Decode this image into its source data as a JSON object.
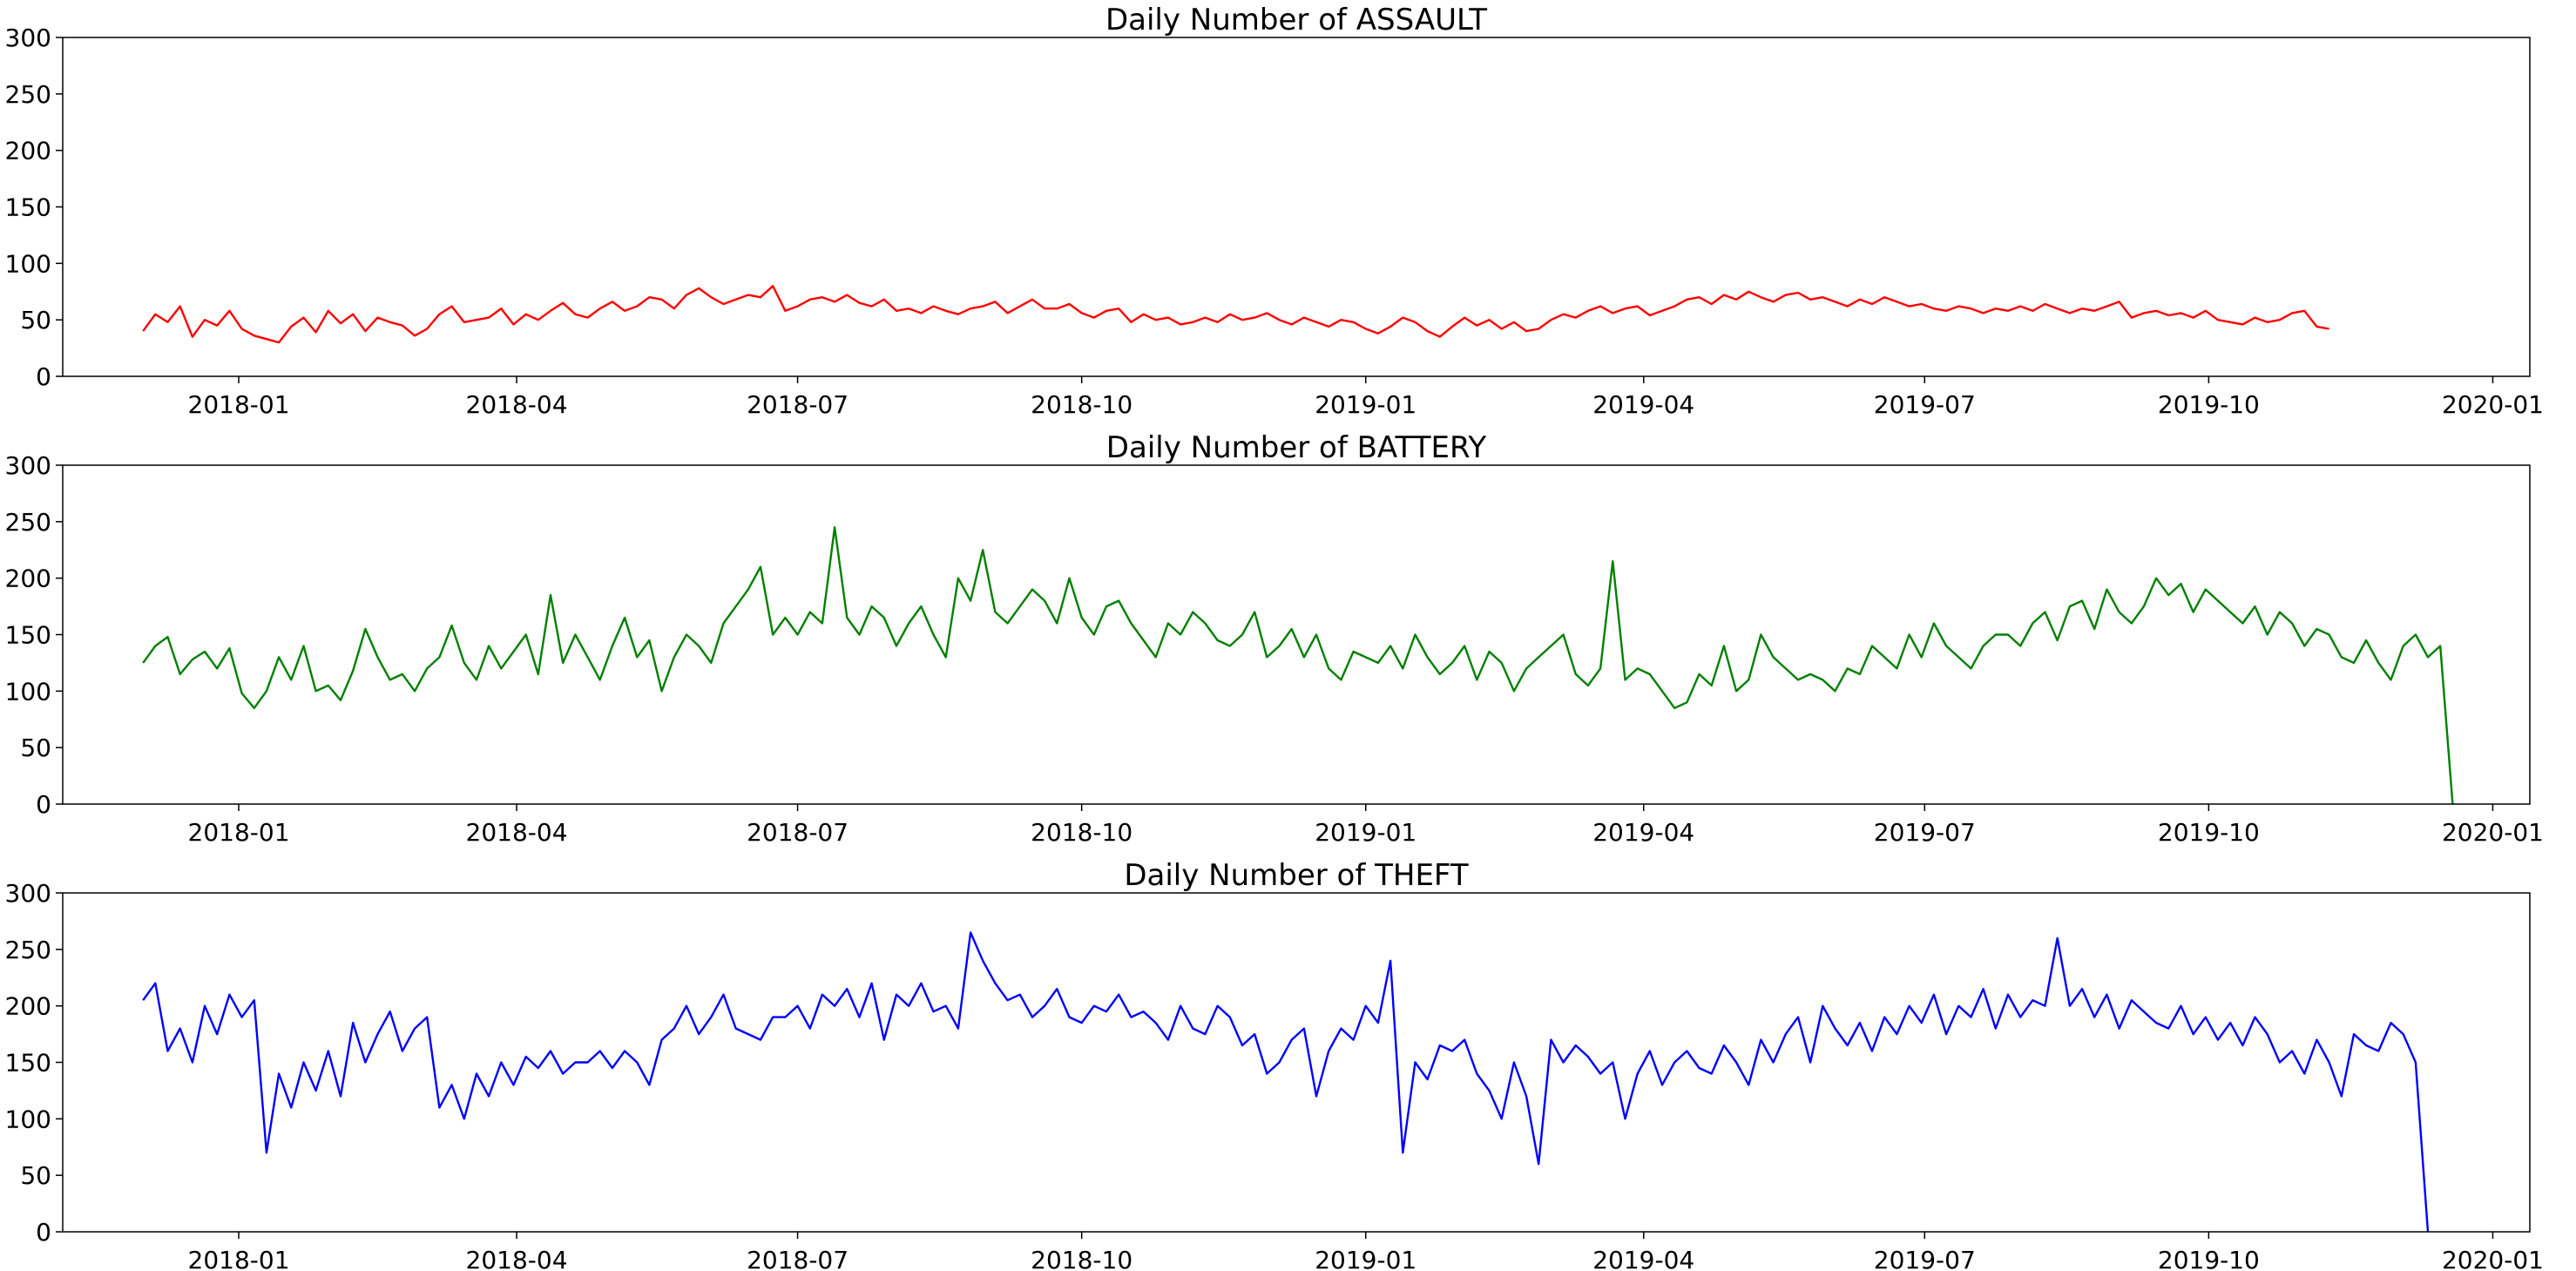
{
  "chart_data": [
    {
      "type": "line",
      "title": "Daily Number of ASSAULT",
      "xlabel": "",
      "ylabel": "",
      "ylim": [
        0,
        300
      ],
      "yticks": [
        "0",
        "50",
        "100",
        "150",
        "200",
        "250",
        "300"
      ],
      "xlim": [
        "2017-11-05",
        "2020-01-13"
      ],
      "xticks": [
        "2018-01",
        "2018-04",
        "2018-07",
        "2018-10",
        "2019-01",
        "2019-04",
        "2019-07",
        "2019-10",
        "2020-01"
      ],
      "grid": false,
      "series": [
        {
          "color": "#ff0000",
          "x_start": "2017-12-01",
          "x_step_days": 4,
          "values": [
            40,
            55,
            48,
            62,
            35,
            50,
            45,
            58,
            42,
            36,
            33,
            30,
            44,
            52,
            39,
            58,
            47,
            55,
            40,
            52,
            48,
            45,
            36,
            42,
            55,
            62,
            48,
            50,
            52,
            60,
            46,
            55,
            50,
            58,
            65,
            55,
            52,
            60,
            66,
            58,
            62,
            70,
            68,
            60,
            72,
            78,
            70,
            64,
            68,
            72,
            70,
            80,
            58,
            62,
            68,
            70,
            66,
            72,
            65,
            62,
            68,
            58,
            60,
            56,
            62,
            58,
            55,
            60,
            62,
            66,
            56,
            62,
            68,
            60,
            60,
            64,
            56,
            52,
            58,
            60,
            48,
            55,
            50,
            52,
            46,
            48,
            52,
            48,
            55,
            50,
            52,
            56,
            50,
            46,
            52,
            48,
            44,
            50,
            48,
            42,
            38,
            44,
            52,
            48,
            40,
            35,
            44,
            52,
            45,
            50,
            42,
            48,
            40,
            42,
            50,
            55,
            52,
            58,
            62,
            56,
            60,
            62,
            54,
            58,
            62,
            68,
            70,
            64,
            72,
            68,
            75,
            70,
            66,
            72,
            74,
            68,
            70,
            66,
            62,
            68,
            64,
            70,
            66,
            62,
            64,
            60,
            58,
            62,
            60,
            56,
            60,
            58,
            62,
            58,
            64,
            60,
            56,
            60,
            58,
            62,
            66,
            52,
            56,
            58,
            54,
            56,
            52,
            58,
            50,
            48,
            46,
            52,
            48,
            50,
            56,
            58,
            44,
            42
          ]
        }
      ]
    },
    {
      "type": "line",
      "title": "Daily Number of BATTERY",
      "xlabel": "",
      "ylabel": "",
      "ylim": [
        0,
        300
      ],
      "yticks": [
        "0",
        "50",
        "100",
        "150",
        "200",
        "250",
        "300"
      ],
      "xlim": [
        "2017-11-05",
        "2020-01-13"
      ],
      "xticks": [
        "2018-01",
        "2018-04",
        "2018-07",
        "2018-10",
        "2019-01",
        "2019-04",
        "2019-07",
        "2019-10",
        "2020-01"
      ],
      "grid": false,
      "series": [
        {
          "color": "#008000",
          "x_start": "2017-12-01",
          "x_step_days": 4,
          "values": [
            125,
            140,
            148,
            115,
            128,
            135,
            120,
            138,
            98,
            85,
            100,
            130,
            110,
            140,
            100,
            105,
            92,
            118,
            155,
            130,
            110,
            115,
            100,
            120,
            130,
            158,
            125,
            110,
            140,
            120,
            135,
            150,
            115,
            185,
            125,
            150,
            130,
            110,
            140,
            165,
            130,
            145,
            100,
            130,
            150,
            140,
            125,
            160,
            175,
            190,
            210,
            150,
            165,
            150,
            170,
            160,
            245,
            165,
            150,
            175,
            165,
            140,
            160,
            175,
            150,
            130,
            200,
            180,
            225,
            170,
            160,
            175,
            190,
            180,
            160,
            200,
            165,
            150,
            175,
            180,
            160,
            145,
            130,
            160,
            150,
            170,
            160,
            145,
            140,
            150,
            170,
            130,
            140,
            155,
            130,
            150,
            120,
            110,
            135,
            130,
            125,
            140,
            120,
            150,
            130,
            115,
            125,
            140,
            110,
            135,
            125,
            100,
            120,
            130,
            140,
            150,
            115,
            105,
            120,
            215,
            110,
            120,
            115,
            100,
            85,
            90,
            115,
            105,
            140,
            100,
            110,
            150,
            130,
            120,
            110,
            115,
            110,
            100,
            120,
            115,
            140,
            130,
            120,
            150,
            130,
            160,
            140,
            130,
            120,
            140,
            150,
            150,
            140,
            160,
            170,
            145,
            175,
            180,
            155,
            190,
            170,
            160,
            175,
            200,
            185,
            195,
            170,
            190,
            180,
            170,
            160,
            175,
            150,
            170,
            160,
            140,
            155,
            150,
            130,
            125,
            145,
            125,
            110,
            140,
            150,
            130,
            140,
            0
          ]
        }
      ]
    },
    {
      "type": "line",
      "title": "Daily Number of THEFT",
      "xlabel": "",
      "ylabel": "",
      "ylim": [
        0,
        300
      ],
      "yticks": [
        "0",
        "50",
        "100",
        "150",
        "200",
        "250",
        "300"
      ],
      "xlim": [
        "2017-11-05",
        "2020-01-13"
      ],
      "xticks": [
        "2018-01",
        "2018-04",
        "2018-07",
        "2018-10",
        "2019-01",
        "2019-04",
        "2019-07",
        "2019-10",
        "2020-01"
      ],
      "grid": false,
      "series": [
        {
          "color": "#0000ff",
          "x_start": "2017-12-01",
          "x_step_days": 4,
          "values": [
            205,
            220,
            160,
            180,
            150,
            200,
            175,
            210,
            190,
            205,
            70,
            140,
            110,
            150,
            125,
            160,
            120,
            185,
            150,
            175,
            195,
            160,
            180,
            190,
            110,
            130,
            100,
            140,
            120,
            150,
            130,
            155,
            145,
            160,
            140,
            150,
            150,
            160,
            145,
            160,
            150,
            130,
            170,
            180,
            200,
            175,
            190,
            210,
            180,
            175,
            170,
            190,
            190,
            200,
            180,
            210,
            200,
            215,
            190,
            220,
            170,
            210,
            200,
            220,
            195,
            200,
            180,
            265,
            240,
            220,
            205,
            210,
            190,
            200,
            215,
            190,
            185,
            200,
            195,
            210,
            190,
            195,
            185,
            170,
            200,
            180,
            175,
            200,
            190,
            165,
            175,
            140,
            150,
            170,
            180,
            120,
            160,
            180,
            170,
            200,
            185,
            240,
            70,
            150,
            135,
            165,
            160,
            170,
            140,
            125,
            100,
            150,
            120,
            60,
            170,
            150,
            165,
            155,
            140,
            150,
            100,
            140,
            160,
            130,
            150,
            160,
            145,
            140,
            165,
            150,
            130,
            170,
            150,
            175,
            190,
            150,
            200,
            180,
            165,
            185,
            160,
            190,
            175,
            200,
            185,
            210,
            175,
            200,
            190,
            215,
            180,
            210,
            190,
            205,
            200,
            260,
            200,
            215,
            190,
            210,
            180,
            205,
            195,
            185,
            180,
            200,
            175,
            190,
            170,
            185,
            165,
            190,
            175,
            150,
            160,
            140,
            170,
            150,
            120,
            175,
            165,
            160,
            185,
            175,
            150,
            0
          ]
        }
      ]
    }
  ]
}
